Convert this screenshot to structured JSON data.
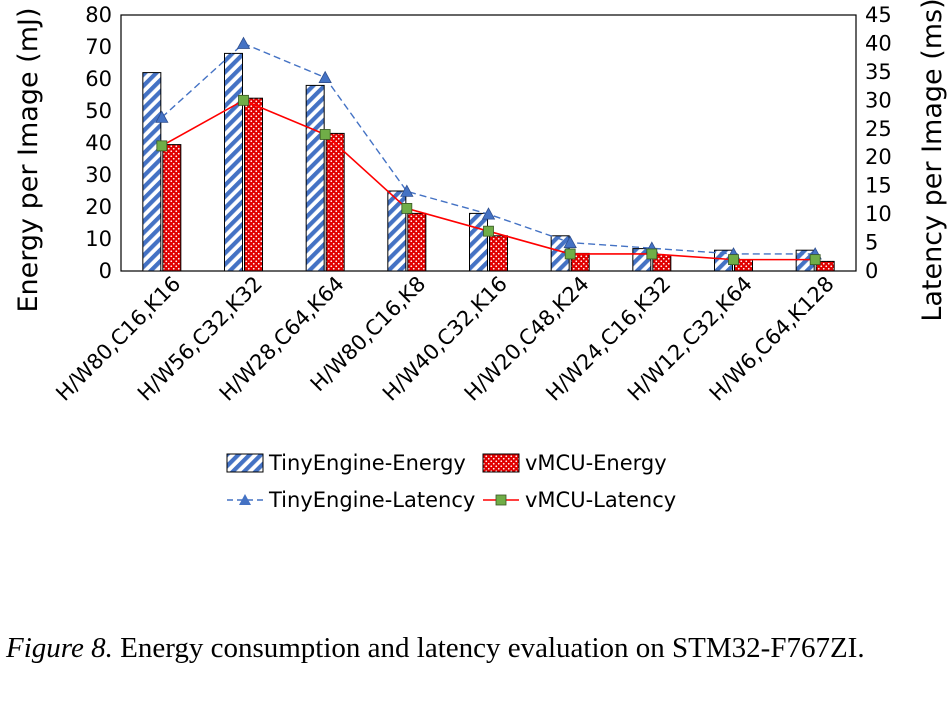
{
  "chart_data": {
    "type": "bar",
    "categories": [
      "H/W80,C16,K16",
      "H/W56,C32,K32",
      "H/W28,C64,K64",
      "H/W80,C16,K8",
      "H/W40,C32,K16",
      "H/W20,C48,K24",
      "H/W24,C16,K32",
      "H/W12,C32,K64",
      "H/W6,C64,K128"
    ],
    "series": [
      {
        "name": "TinyEngine-Energy",
        "kind": "bar",
        "axis": "left",
        "color": "#4472c4",
        "values": [
          62,
          68,
          58,
          25,
          18,
          11,
          7,
          6.5,
          6.5
        ]
      },
      {
        "name": "vMCU-Energy",
        "kind": "bar",
        "axis": "left",
        "color": "#e00000",
        "values": [
          39.5,
          54,
          43,
          18,
          11,
          5.5,
          5,
          3.5,
          3
        ]
      },
      {
        "name": "TinyEngine-Latency",
        "kind": "line",
        "axis": "right",
        "color": "#4472c4",
        "marker": "triangle",
        "values": [
          27,
          40,
          34,
          14,
          10,
          5,
          4,
          3,
          3
        ]
      },
      {
        "name": "vMCU-Latency",
        "kind": "line",
        "axis": "right",
        "color": "#ff0000",
        "marker": "square",
        "values": [
          22,
          30,
          24,
          11,
          7,
          3,
          3,
          2,
          2
        ]
      }
    ],
    "ylabel": "Energy per Image (mJ)",
    "y2label": "Latency per Image (ms)",
    "ylim": [
      0,
      80
    ],
    "y2lim": [
      0,
      45
    ],
    "yticks": [
      0,
      10,
      20,
      30,
      40,
      50,
      60,
      70,
      80
    ],
    "y2ticks": [
      0,
      5,
      10,
      15,
      20,
      25,
      30,
      35,
      40,
      45
    ],
    "grid": false,
    "legend": "bottom"
  },
  "caption": {
    "label": "Figure 8.",
    "text": " Energy consumption and latency evaluation on STM32-F767ZI."
  }
}
